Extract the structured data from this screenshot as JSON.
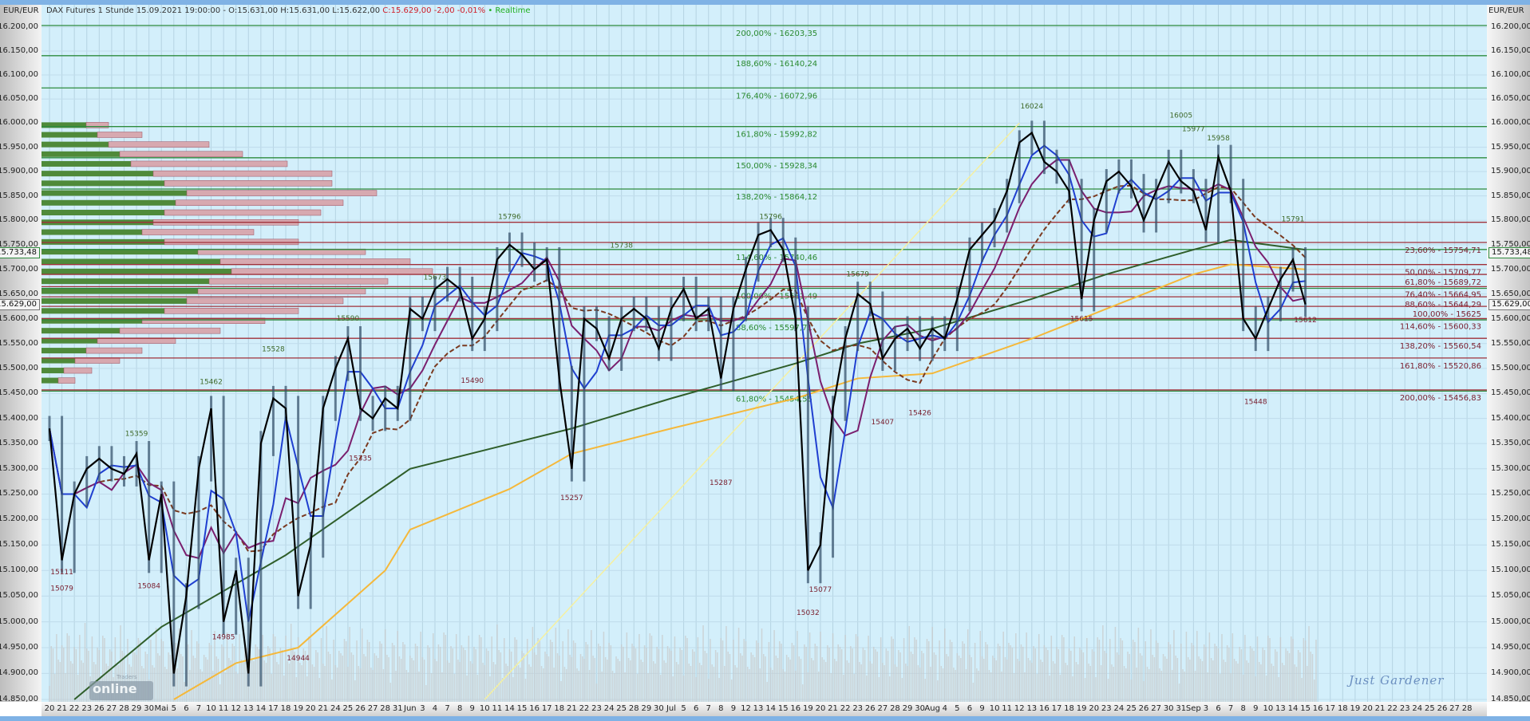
{
  "header": {
    "instrument": "DAX Futures 1 Stunde",
    "datetime": "15.09.2021 19:00:00",
    "ohl": "- O:15.631,00 H:15.631,00 L:15.622,00",
    "close": "C:15.629,00 -2,00 -0,01%",
    "realtime": "• Realtime"
  },
  "axis_unit": "EUR/EUR",
  "price_tags": [
    {
      "label": "15.733,48",
      "price": 15733.48,
      "color": "#2e8b3e"
    },
    {
      "label": "15.629,00",
      "price": 15629,
      "color": "#777777"
    }
  ],
  "signature": "Just Gardener",
  "logo": {
    "text": "online",
    "small": "Traders"
  },
  "colors": {
    "background": "#d3effb",
    "candles": "#000000",
    "ma_fast": "#1f3fd0",
    "ma_mid": "#7a1f6e",
    "ma_dashed": "#7a3a20",
    "ma_long": "#2f5e2a",
    "ma_longest": "#f5b83a",
    "fib_up": "#2e8b3e",
    "fib_down": "#a0303a",
    "trendline": "#f5f0a0"
  },
  "chart_data": {
    "type": "line",
    "title": "",
    "yscale": "log",
    "ylim": [
      14850,
      16200
    ],
    "yticks": [
      16200,
      16150,
      16100,
      16050,
      16000,
      15950,
      15900,
      15850,
      15800,
      15750,
      15700,
      15650,
      15600,
      15550,
      15500,
      15450,
      15400,
      15350,
      15300,
      15250,
      15200,
      15150,
      15100,
      15050,
      15000,
      14950,
      14900,
      14850
    ],
    "ytick_labels": [
      "16.200,00",
      "16.150,00",
      "16.100,00",
      "16.050,00",
      "16.000,00",
      "15.950,00",
      "15.900,00",
      "15.850,00",
      "15.800,00",
      "15.750,00",
      "15.700,00",
      "15.650,00",
      "15.600,00",
      "15.550,00",
      "15.500,00",
      "15.450,00",
      "15.400,00",
      "15.350,00",
      "15.300,00",
      "15.250,00",
      "15.200,00",
      "15.150,00",
      "15.100,00",
      "15.050,00",
      "15.000,00",
      "14.950,00",
      "14.900,00",
      "14.850,00"
    ],
    "x_labels": [
      "20",
      "21",
      "22",
      "23",
      "26",
      "27",
      "28",
      "29",
      "30",
      "Mai",
      "5",
      "6",
      "7",
      "10",
      "11",
      "12",
      "13",
      "14",
      "17",
      "18",
      "19",
      "20",
      "21",
      "24",
      "25",
      "26",
      "27",
      "28",
      "31",
      "Jun",
      "3",
      "4",
      "7",
      "8",
      "9",
      "10",
      "11",
      "14",
      "15",
      "16",
      "17",
      "18",
      "21",
      "22",
      "23",
      "24",
      "25",
      "28",
      "29",
      "30",
      "Jul",
      "5",
      "6",
      "7",
      "8",
      "9",
      "12",
      "13",
      "14",
      "15",
      "16",
      "19",
      "20",
      "21",
      "22",
      "23",
      "26",
      "27",
      "28",
      "29",
      "30",
      "Aug",
      "4",
      "5",
      "6",
      "9",
      "10",
      "11",
      "12",
      "13",
      "16",
      "17",
      "18",
      "19",
      "20",
      "23",
      "24",
      "25",
      "26",
      "27",
      "30",
      "31",
      "Sep",
      "3",
      "6",
      "7",
      "8",
      "9",
      "10",
      "13",
      "14",
      "15",
      "16",
      "17",
      "18",
      "19",
      "20",
      "21",
      "22",
      "23",
      "24",
      "25",
      "26",
      "27",
      "28"
    ],
    "series": [
      {
        "values": [
          15380,
          15120,
          15250,
          15300,
          15320,
          15300,
          15290,
          15330,
          15120,
          15250,
          14900,
          15050,
          15300,
          15420,
          15000,
          15100,
          14900,
          15350,
          15440,
          15420,
          15050,
          15150,
          15420,
          15500,
          15560,
          15420,
          15400,
          15440,
          15420,
          15620,
          15600,
          15660,
          15680,
          15660,
          15560,
          15600,
          15720,
          15750,
          15730,
          15700,
          15720,
          15480,
          15300,
          15600,
          15580,
          15520,
          15600,
          15620,
          15600,
          15540,
          15620,
          15660,
          15600,
          15620,
          15480,
          15620,
          15700,
          15770,
          15780,
          15740,
          15600,
          15100,
          15150,
          15420,
          15560,
          15650,
          15630,
          15520,
          15560,
          15580,
          15540,
          15580,
          15560,
          15640,
          15740,
          15770,
          15800,
          15860,
          15960,
          15980,
          15920,
          15900,
          15860,
          15640,
          15800,
          15880,
          15900,
          15870,
          15800,
          15860,
          15920,
          15880,
          15860,
          15780,
          15930,
          15860,
          15600,
          15560,
          15620,
          15680,
          15720,
          15629
        ]
      }
    ],
    "long_averages": [
      {
        "color": "ma_long",
        "points": [
          [
            "22",
            14850
          ],
          [
            "Mai",
            14990
          ],
          [
            "18",
            15130
          ],
          [
            "Jun",
            15300
          ],
          [
            "21",
            15380
          ],
          [
            "Jul",
            15440
          ],
          [
            "16",
            15510
          ],
          [
            "23",
            15550
          ],
          [
            "Aug",
            15580
          ],
          [
            "13",
            15640
          ],
          [
            "23",
            15690
          ],
          [
            "Sep",
            15740
          ],
          [
            "7",
            15760
          ],
          [
            "15",
            15740
          ]
        ]
      },
      {
        "color": "ma_longest",
        "points": [
          [
            "5",
            14850
          ],
          [
            "12",
            14920
          ],
          [
            "19",
            14950
          ],
          [
            "28",
            15100
          ],
          [
            "Jun",
            15180
          ],
          [
            "14",
            15260
          ],
          [
            "21",
            15330
          ],
          [
            "Jul",
            15380
          ],
          [
            "16",
            15440
          ],
          [
            "23",
            15480
          ],
          [
            "Aug",
            15490
          ],
          [
            "13",
            15560
          ],
          [
            "23",
            15620
          ],
          [
            "Sep",
            15690
          ],
          [
            "7",
            15710
          ],
          [
            "15",
            15700
          ]
        ]
      }
    ],
    "trendline": {
      "from": [
        "10",
        14850
      ],
      "to": [
        "12",
        16000
      ]
    },
    "fib_up": [
      {
        "label": "200,00% - 16203,35",
        "price": 16203.35
      },
      {
        "label": "188,60% - 16140,24",
        "price": 16140.24
      },
      {
        "label": "176,40% - 16072,96",
        "price": 16072.96
      },
      {
        "label": "161,80% - 15992,82",
        "price": 15992.82
      },
      {
        "label": "150,00% - 15928,34",
        "price": 15928.34
      },
      {
        "label": "138,20% - 15864,12",
        "price": 15864.12
      },
      {
        "label": "114,60% - 15740,46",
        "price": 15740.46
      },
      {
        "label": "100,00% - 15661,49",
        "price": 15661.49
      },
      {
        "label": "88,60% - 15597,71",
        "price": 15597.71
      },
      {
        "label": "61,80% - 15454,55",
        "price": 15454.55
      }
    ],
    "fib_down": [
      {
        "label": "",
        "price": 15796
      },
      {
        "label": "23,60% - 15754,71",
        "price": 15754.71
      },
      {
        "label": "50,00% - 15709,77",
        "price": 15709.77
      },
      {
        "label": "61,80% - 15689,72",
        "price": 15689.72
      },
      {
        "label": "76,40% - 15664,95",
        "price": 15664.95
      },
      {
        "label": "88,60% - 15644,29",
        "price": 15644.29
      },
      {
        "label": "100,00% - 15625",
        "price": 15625
      },
      {
        "label": "114,60% - 15600,33",
        "price": 15600.33
      },
      {
        "label": "138,20% - 15560,54",
        "price": 15560.54
      },
      {
        "label": "161,80% - 15520,86",
        "price": 15520.86
      },
      {
        "label": "200,00% - 15456,83",
        "price": 15456.83
      }
    ],
    "point_labels": [
      {
        "x": "21",
        "v": 15111,
        "t": "low"
      },
      {
        "x": "21",
        "v": 15079,
        "t": "low"
      },
      {
        "x": "29",
        "v": 15359,
        "t": "high"
      },
      {
        "x": "30",
        "v": 15084,
        "t": "low"
      },
      {
        "x": "10",
        "v": 15462,
        "t": "high"
      },
      {
        "x": "11",
        "v": 14985,
        "t": "low"
      },
      {
        "x": "17",
        "v": 15528,
        "t": "high"
      },
      {
        "x": "19",
        "v": 14944,
        "t": "low"
      },
      {
        "x": "25",
        "v": 15590,
        "t": "high"
      },
      {
        "x": "26",
        "v": 15335,
        "t": "low"
      },
      {
        "x": "4",
        "v": 15673,
        "t": "high"
      },
      {
        "x": "9",
        "v": 15490,
        "t": "low"
      },
      {
        "x": "14",
        "v": 15796,
        "t": "high"
      },
      {
        "x": "21",
        "v": 15257,
        "t": "low"
      },
      {
        "x": "25",
        "v": 15738,
        "t": "high"
      },
      {
        "x": "8",
        "v": 15287,
        "t": "low"
      },
      {
        "x": "14",
        "v": 15796,
        "t": "high"
      },
      {
        "x": "19",
        "v": 15032,
        "t": "low"
      },
      {
        "x": "20",
        "v": 15077,
        "t": "low"
      },
      {
        "x": "23",
        "v": 15679,
        "t": "high"
      },
      {
        "x": "27",
        "v": 15407,
        "t": "low"
      },
      {
        "x": "30",
        "v": 15426,
        "t": "low"
      },
      {
        "x": "13",
        "v": 16024,
        "t": "high"
      },
      {
        "x": "19",
        "v": 15615,
        "t": "low"
      },
      {
        "x": "31",
        "v": 16005,
        "t": "high"
      },
      {
        "x": "Sep",
        "v": 15977,
        "t": "high"
      },
      {
        "x": "6",
        "v": 15958,
        "t": "high"
      },
      {
        "x": "9",
        "v": 15448,
        "t": "low"
      },
      {
        "x": "14",
        "v": 15791,
        "t": "high"
      },
      {
        "x": "15",
        "v": 15612,
        "t": "low"
      }
    ],
    "volume_profile": [
      [
        15995,
        8,
        4
      ],
      [
        15975,
        10,
        8
      ],
      [
        15955,
        12,
        18
      ],
      [
        15935,
        14,
        22
      ],
      [
        15915,
        16,
        28
      ],
      [
        15895,
        20,
        32
      ],
      [
        15875,
        22,
        30
      ],
      [
        15855,
        26,
        34
      ],
      [
        15835,
        24,
        30
      ],
      [
        15815,
        22,
        28
      ],
      [
        15795,
        20,
        26
      ],
      [
        15775,
        18,
        20
      ],
      [
        15755,
        22,
        24
      ],
      [
        15735,
        28,
        30
      ],
      [
        15715,
        32,
        34
      ],
      [
        15695,
        34,
        36
      ],
      [
        15675,
        30,
        32
      ],
      [
        15655,
        28,
        30
      ],
      [
        15635,
        26,
        28
      ],
      [
        15615,
        22,
        24
      ],
      [
        15595,
        18,
        22
      ],
      [
        15575,
        14,
        18
      ],
      [
        15555,
        10,
        14
      ],
      [
        15535,
        8,
        10
      ],
      [
        15515,
        6,
        8
      ],
      [
        15495,
        4,
        5
      ],
      [
        15475,
        3,
        3
      ]
    ]
  }
}
